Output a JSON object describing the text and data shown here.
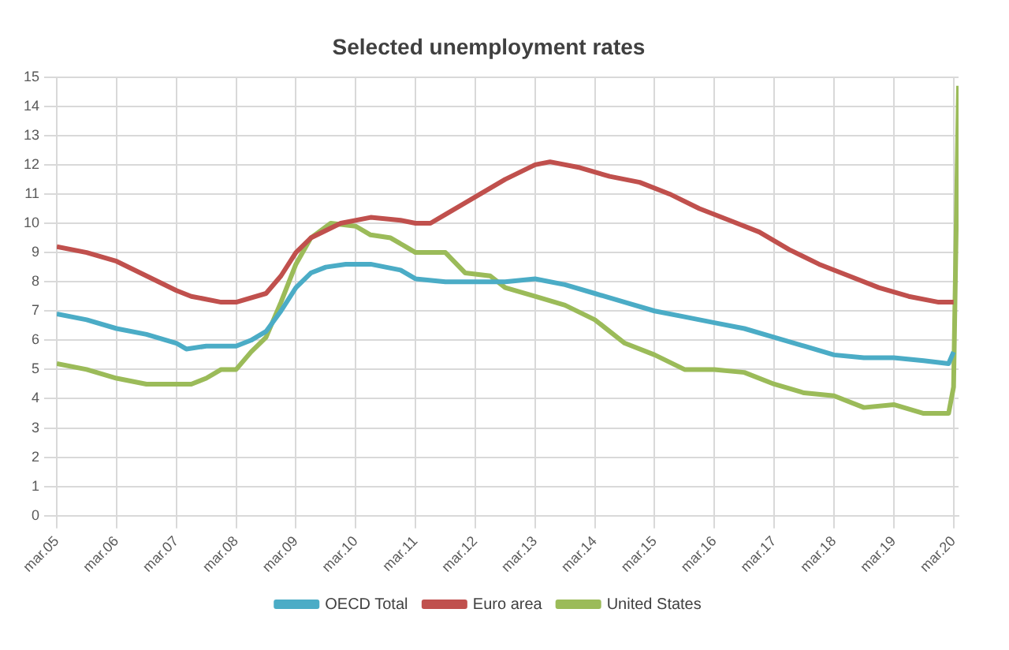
{
  "chart_data": {
    "type": "line",
    "title": "Selected unemployment rates",
    "xlim": [
      "2005-03",
      "2020-04"
    ],
    "xticks": [
      {
        "value": "2005-03",
        "label": "mar.05"
      },
      {
        "value": "2006-03",
        "label": "mar.06"
      },
      {
        "value": "2007-03",
        "label": "mar.07"
      },
      {
        "value": "2008-03",
        "label": "mar.08"
      },
      {
        "value": "2009-03",
        "label": "mar.09"
      },
      {
        "value": "2010-03",
        "label": "mar.10"
      },
      {
        "value": "2011-03",
        "label": "mar.11"
      },
      {
        "value": "2012-03",
        "label": "mar.12"
      },
      {
        "value": "2013-03",
        "label": "mar.13"
      },
      {
        "value": "2014-03",
        "label": "mar.14"
      },
      {
        "value": "2015-03",
        "label": "mar.15"
      },
      {
        "value": "2016-03",
        "label": "mar.16"
      },
      {
        "value": "2017-03",
        "label": "mar.17"
      },
      {
        "value": "2018-03",
        "label": "mar.18"
      },
      {
        "value": "2019-03",
        "label": "mar.19"
      },
      {
        "value": "2020-03",
        "label": "mar.20"
      }
    ],
    "ylim": [
      0,
      15
    ],
    "yticks": [
      0,
      1,
      2,
      3,
      4,
      5,
      6,
      7,
      8,
      9,
      10,
      11,
      12,
      13,
      14,
      15
    ],
    "grid": true,
    "legend": "bottom",
    "marker": "none",
    "line_style": "solid",
    "series": [
      {
        "name": "OECD Total",
        "color": "#4bacc6",
        "x": [
          "2005-03",
          "2005-09",
          "2006-03",
          "2006-09",
          "2007-03",
          "2007-05",
          "2007-09",
          "2008-03",
          "2008-06",
          "2008-09",
          "2008-12",
          "2009-03",
          "2009-06",
          "2009-09",
          "2010-01",
          "2010-06",
          "2010-12",
          "2011-03",
          "2011-09",
          "2012-03",
          "2012-09",
          "2013-03",
          "2013-09",
          "2014-03",
          "2014-09",
          "2015-03",
          "2015-09",
          "2016-03",
          "2016-09",
          "2017-03",
          "2017-09",
          "2018-03",
          "2018-09",
          "2019-03",
          "2019-09",
          "2020-02",
          "2020-03"
        ],
        "values": [
          6.9,
          6.7,
          6.4,
          6.2,
          5.9,
          5.7,
          5.8,
          5.8,
          6.0,
          6.3,
          7.0,
          7.8,
          8.3,
          8.5,
          8.6,
          8.6,
          8.4,
          8.1,
          8.0,
          8.0,
          8.0,
          8.1,
          7.9,
          7.6,
          7.3,
          7.0,
          6.8,
          6.6,
          6.4,
          6.1,
          5.8,
          5.5,
          5.4,
          5.4,
          5.3,
          5.2,
          5.6
        ]
      },
      {
        "name": "Euro area",
        "color": "#c0504d",
        "x": [
          "2005-03",
          "2005-09",
          "2006-03",
          "2006-09",
          "2007-03",
          "2007-06",
          "2007-12",
          "2008-03",
          "2008-09",
          "2008-12",
          "2009-03",
          "2009-06",
          "2009-12",
          "2010-06",
          "2010-12",
          "2011-03",
          "2011-06",
          "2011-09",
          "2012-03",
          "2012-09",
          "2013-03",
          "2013-06",
          "2013-12",
          "2014-06",
          "2014-12",
          "2015-06",
          "2015-12",
          "2016-06",
          "2016-12",
          "2017-06",
          "2017-12",
          "2018-06",
          "2018-12",
          "2019-06",
          "2019-12",
          "2020-03"
        ],
        "values": [
          9.2,
          9.0,
          8.7,
          8.2,
          7.7,
          7.5,
          7.3,
          7.3,
          7.6,
          8.2,
          9.0,
          9.5,
          10.0,
          10.2,
          10.1,
          10.0,
          10.0,
          10.3,
          10.9,
          11.5,
          12.0,
          12.1,
          11.9,
          11.6,
          11.4,
          11.0,
          10.5,
          10.1,
          9.7,
          9.1,
          8.6,
          8.2,
          7.8,
          7.5,
          7.3,
          7.3
        ]
      },
      {
        "name": "United States",
        "color": "#9bbb59",
        "x": [
          "2005-03",
          "2005-09",
          "2006-03",
          "2006-09",
          "2007-03",
          "2007-06",
          "2007-09",
          "2007-12",
          "2008-03",
          "2008-06",
          "2008-09",
          "2008-12",
          "2009-03",
          "2009-06",
          "2009-10",
          "2010-03",
          "2010-06",
          "2010-10",
          "2011-01",
          "2011-03",
          "2011-09",
          "2012-01",
          "2012-06",
          "2012-09",
          "2013-03",
          "2013-09",
          "2014-03",
          "2014-09",
          "2015-03",
          "2015-09",
          "2016-03",
          "2016-09",
          "2017-03",
          "2017-09",
          "2018-03",
          "2018-09",
          "2019-03",
          "2019-09",
          "2020-02",
          "2020-03",
          "2020-04"
        ],
        "values": [
          5.2,
          5.0,
          4.7,
          4.5,
          4.5,
          4.5,
          4.7,
          5.0,
          5.0,
          5.6,
          6.1,
          7.3,
          8.6,
          9.5,
          10.0,
          9.9,
          9.6,
          9.5,
          9.2,
          9.0,
          9.0,
          8.3,
          8.2,
          7.8,
          7.5,
          7.2,
          6.7,
          5.9,
          5.5,
          5.0,
          5.0,
          4.9,
          4.5,
          4.2,
          4.1,
          3.7,
          3.8,
          3.5,
          3.5,
          4.4,
          14.7
        ]
      }
    ]
  }
}
